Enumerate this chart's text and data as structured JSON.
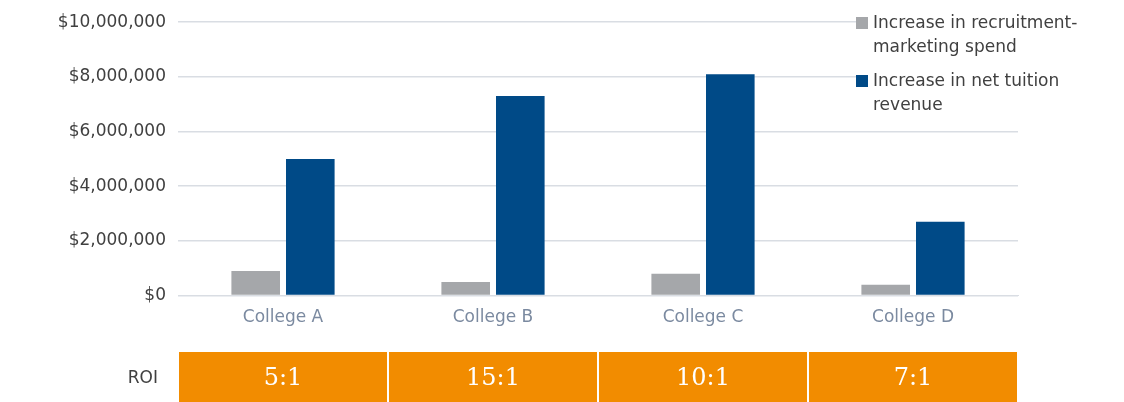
{
  "chart_data": {
    "type": "bar",
    "categories": [
      "College A",
      "College B",
      "College C",
      "College D"
    ],
    "series": [
      {
        "name": "Increase in recruitment-marketing spend",
        "color": "#a5a7aa",
        "values": [
          900000,
          500000,
          800000,
          400000
        ]
      },
      {
        "name": "Increase in net tuition revenue",
        "color": "#004a87",
        "values": [
          5000000,
          7300000,
          8100000,
          2700000
        ]
      }
    ],
    "ylim": [
      0,
      10000000
    ],
    "yticks": [
      {
        "value": 0,
        "label": "$0"
      },
      {
        "value": 2000000,
        "label": "$2,000,000"
      },
      {
        "value": 4000000,
        "label": "$4,000,000"
      },
      {
        "value": 6000000,
        "label": "$6,000,000"
      },
      {
        "value": 8000000,
        "label": "$8,000,000"
      },
      {
        "value": 10000000,
        "label": "$10,000,000"
      }
    ],
    "grid": "y",
    "legend": "top right",
    "annotations": [
      "ROI",
      "5:1",
      "15:1",
      "10:1",
      "7:1"
    ]
  }
}
